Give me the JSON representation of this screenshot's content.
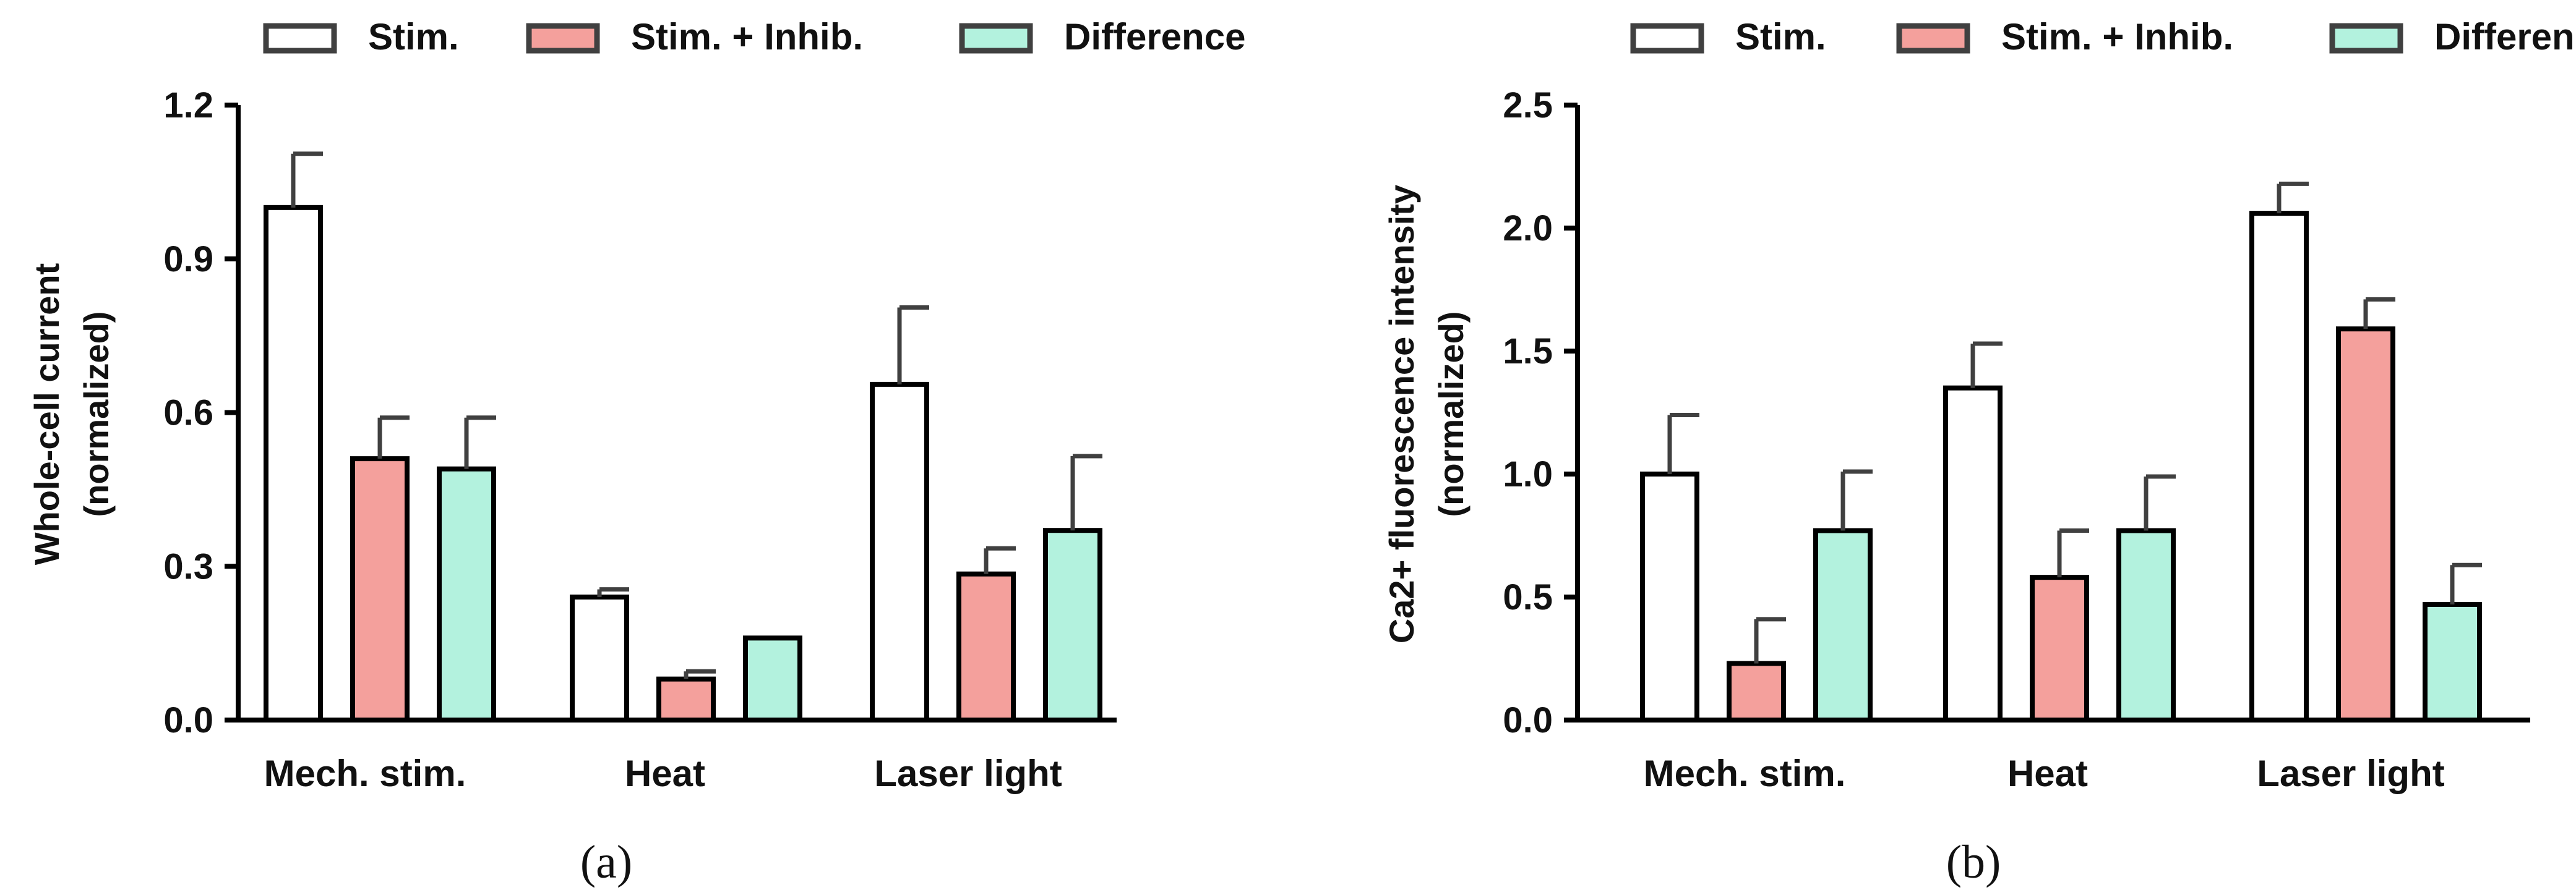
{
  "chart_data": [
    {
      "type": "bar",
      "panel_label": "(a)",
      "categories": [
        "Mech. stim.",
        "Heat",
        "Laser light"
      ],
      "ylabel": [
        "Whole-cell current",
        "(normalized)"
      ],
      "ylim": [
        0,
        1.2
      ],
      "yticks": [
        "0.0",
        "0.3",
        "0.6",
        "0.9",
        "1.2"
      ],
      "tick_values": [
        0,
        0.3,
        0.6,
        0.9,
        1.2
      ],
      "legend_position": "top",
      "series": [
        {
          "name": "Stim.",
          "color": "#ffffff",
          "values": [
            1.0,
            0.24,
            0.655
          ],
          "errors": [
            0.105,
            0.015,
            0.15
          ]
        },
        {
          "name": "Stim. + Inhib.",
          "color": "#f4a09c",
          "values": [
            0.51,
            0.08,
            0.285
          ],
          "errors": [
            0.08,
            0.015,
            0.05
          ]
        },
        {
          "name": "Difference",
          "color": "#b3f2de",
          "values": [
            0.49,
            0.16,
            0.37
          ],
          "errors": [
            0.1,
            0.0,
            0.145
          ]
        }
      ]
    },
    {
      "type": "bar",
      "panel_label": "(b)",
      "categories": [
        "Mech. stim.",
        "Heat",
        "Laser light"
      ],
      "ylabel": [
        "Ca2+ fluorescence intensity",
        "(normalized)"
      ],
      "ylim": [
        0,
        2.5
      ],
      "yticks": [
        "0.0",
        "0.5",
        "1.0",
        "1.5",
        "2.0",
        "2.5"
      ],
      "tick_values": [
        0,
        0.5,
        1.0,
        1.5,
        2.0,
        2.5
      ],
      "legend_position": "top",
      "series": [
        {
          "name": "Stim.",
          "color": "#ffffff",
          "values": [
            1.0,
            1.35,
            2.06
          ],
          "errors": [
            0.24,
            0.18,
            0.12
          ]
        },
        {
          "name": "Stim. + Inhib.",
          "color": "#f4a09c",
          "values": [
            0.23,
            0.58,
            1.59
          ],
          "errors": [
            0.18,
            0.19,
            0.12
          ]
        },
        {
          "name": "Difference",
          "color": "#b3f2de",
          "values": [
            0.77,
            0.77,
            0.47
          ],
          "errors": [
            0.24,
            0.22,
            0.16
          ]
        }
      ]
    }
  ]
}
